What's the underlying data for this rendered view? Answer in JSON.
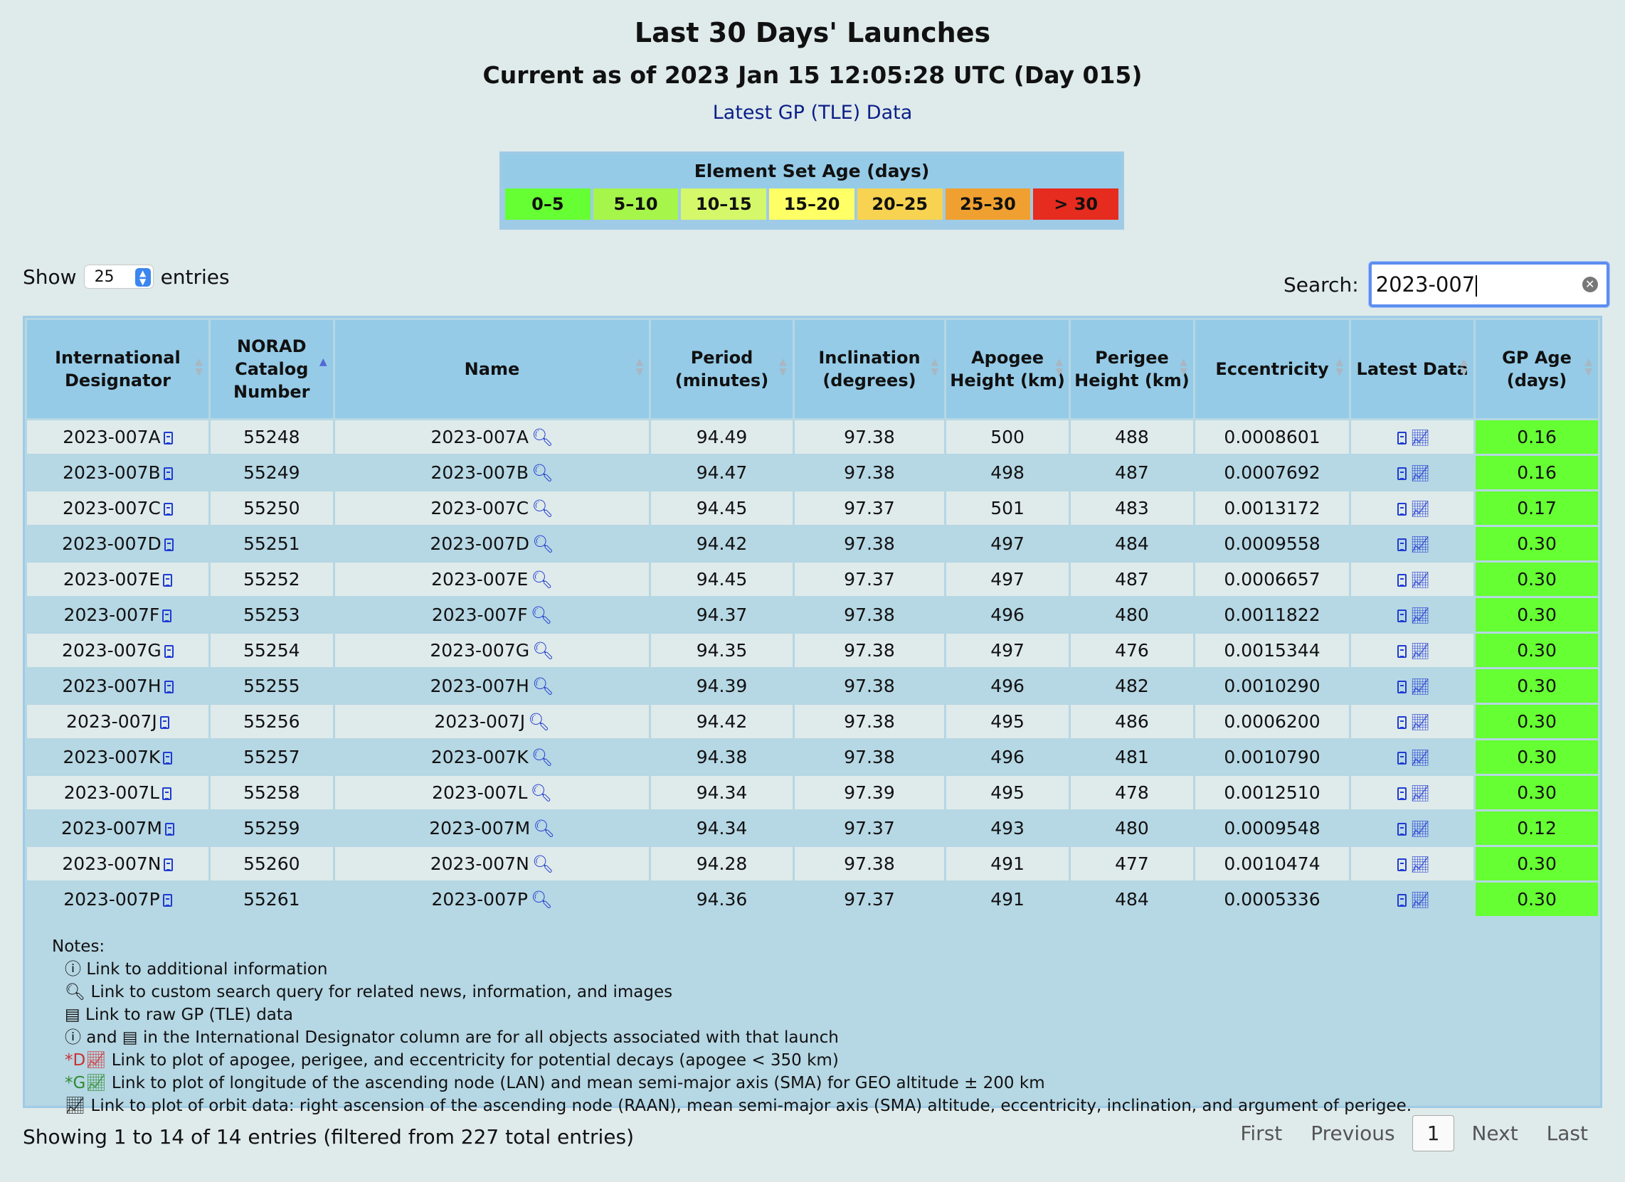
{
  "header": {
    "title": "Last 30 Days' Launches",
    "subtitle": "Current as of 2023 Jan 15 12:05:28 UTC (Day 015)",
    "link": "Latest GP (TLE) Data"
  },
  "legend": {
    "title": "Element Set Age (days)",
    "items": [
      {
        "label": "0–5",
        "color": "#66ff33"
      },
      {
        "label": "5–10",
        "color": "#a6f54a"
      },
      {
        "label": "10–15",
        "color": "#d5f76a"
      },
      {
        "label": "15–20",
        "color": "#ffff66"
      },
      {
        "label": "20–25",
        "color": "#f7d351"
      },
      {
        "label": "25–30",
        "color": "#f0a030"
      },
      {
        "label": "> 30",
        "color": "#e62b1f"
      }
    ]
  },
  "controls": {
    "show_label": "Show",
    "entries_value": "25",
    "entries_label": "entries",
    "search_label": "Search:",
    "search_value": "2023-007"
  },
  "table": {
    "headers": [
      "International Designator",
      "NORAD Catalog Number",
      "Name",
      "Period (minutes)",
      "Inclination (degrees)",
      "Apogee Height (km)",
      "Perigee Height (km)",
      "Eccentricity",
      "Latest Data",
      "GP Age (days)"
    ],
    "rows": [
      {
        "id": "2023-007A",
        "norad": "55248",
        "name": "2023-007A",
        "period": "94.49",
        "incl": "97.38",
        "apogee": "500",
        "perigee": "488",
        "ecc": "0.0008601",
        "age": "0.16"
      },
      {
        "id": "2023-007B",
        "norad": "55249",
        "name": "2023-007B",
        "period": "94.47",
        "incl": "97.38",
        "apogee": "498",
        "perigee": "487",
        "ecc": "0.0007692",
        "age": "0.16"
      },
      {
        "id": "2023-007C",
        "norad": "55250",
        "name": "2023-007C",
        "period": "94.45",
        "incl": "97.37",
        "apogee": "501",
        "perigee": "483",
        "ecc": "0.0013172",
        "age": "0.17"
      },
      {
        "id": "2023-007D",
        "norad": "55251",
        "name": "2023-007D",
        "period": "94.42",
        "incl": "97.38",
        "apogee": "497",
        "perigee": "484",
        "ecc": "0.0009558",
        "age": "0.30"
      },
      {
        "id": "2023-007E",
        "norad": "55252",
        "name": "2023-007E",
        "period": "94.45",
        "incl": "97.37",
        "apogee": "497",
        "perigee": "487",
        "ecc": "0.0006657",
        "age": "0.30"
      },
      {
        "id": "2023-007F",
        "norad": "55253",
        "name": "2023-007F",
        "period": "94.37",
        "incl": "97.38",
        "apogee": "496",
        "perigee": "480",
        "ecc": "0.0011822",
        "age": "0.30"
      },
      {
        "id": "2023-007G",
        "norad": "55254",
        "name": "2023-007G",
        "period": "94.35",
        "incl": "97.38",
        "apogee": "497",
        "perigee": "476",
        "ecc": "0.0015344",
        "age": "0.30"
      },
      {
        "id": "2023-007H",
        "norad": "55255",
        "name": "2023-007H",
        "period": "94.39",
        "incl": "97.38",
        "apogee": "496",
        "perigee": "482",
        "ecc": "0.0010290",
        "age": "0.30"
      },
      {
        "id": "2023-007J",
        "norad": "55256",
        "name": "2023-007J",
        "period": "94.42",
        "incl": "97.38",
        "apogee": "495",
        "perigee": "486",
        "ecc": "0.0006200",
        "age": "0.30"
      },
      {
        "id": "2023-007K",
        "norad": "55257",
        "name": "2023-007K",
        "period": "94.38",
        "incl": "97.38",
        "apogee": "496",
        "perigee": "481",
        "ecc": "0.0010790",
        "age": "0.30"
      },
      {
        "id": "2023-007L",
        "norad": "55258",
        "name": "2023-007L",
        "period": "94.34",
        "incl": "97.39",
        "apogee": "495",
        "perigee": "478",
        "ecc": "0.0012510",
        "age": "0.30"
      },
      {
        "id": "2023-007M",
        "norad": "55259",
        "name": "2023-007M",
        "period": "94.34",
        "incl": "97.37",
        "apogee": "493",
        "perigee": "480",
        "ecc": "0.0009548",
        "age": "0.12"
      },
      {
        "id": "2023-007N",
        "norad": "55260",
        "name": "2023-007N",
        "period": "94.28",
        "incl": "97.38",
        "apogee": "491",
        "perigee": "477",
        "ecc": "0.0010474",
        "age": "0.30"
      },
      {
        "id": "2023-007P",
        "norad": "55261",
        "name": "2023-007P",
        "period": "94.36",
        "incl": "97.37",
        "apogee": "491",
        "perigee": "484",
        "ecc": "0.0005336",
        "age": "0.30"
      }
    ]
  },
  "notes": {
    "title": "Notes:",
    "lines": [
      {
        "prefix": "ⓘ",
        "text": "Link to additional information"
      },
      {
        "prefix": "🔍︎",
        "text": "Link to custom search query for related news, information, and images"
      },
      {
        "prefix": "▤",
        "text": "Link to raw GP (TLE) data"
      },
      {
        "prefix": "ⓘ and ▤",
        "text": "in the International Designator column are for all objects associated with that launch"
      },
      {
        "prefix": "*D",
        "text": "Link to plot of apogee, perigee, and eccentricity for potential decays (apogee < 350 km)"
      },
      {
        "prefix": "*G",
        "text": "Link to plot of longitude of the ascending node (LAN) and mean semi-major axis (SMA) for GEO altitude ± 200 km"
      },
      {
        "prefix": "",
        "text": "Link to plot of orbit data: right ascension of the ascending node (RAAN), mean semi-major axis (SMA) altitude, eccentricity, inclination, and argument of perigee."
      }
    ]
  },
  "footer": {
    "info": "Showing 1 to 14 of 14 entries (filtered from 227 total entries)",
    "first": "First",
    "previous": "Previous",
    "current": "1",
    "next": "Next",
    "last": "Last"
  },
  "colors": {
    "age_fresh": "#66ff33",
    "header_bg": "#95cbe7",
    "page_bg": "#dfeaea",
    "link": "#1f3bd1"
  }
}
